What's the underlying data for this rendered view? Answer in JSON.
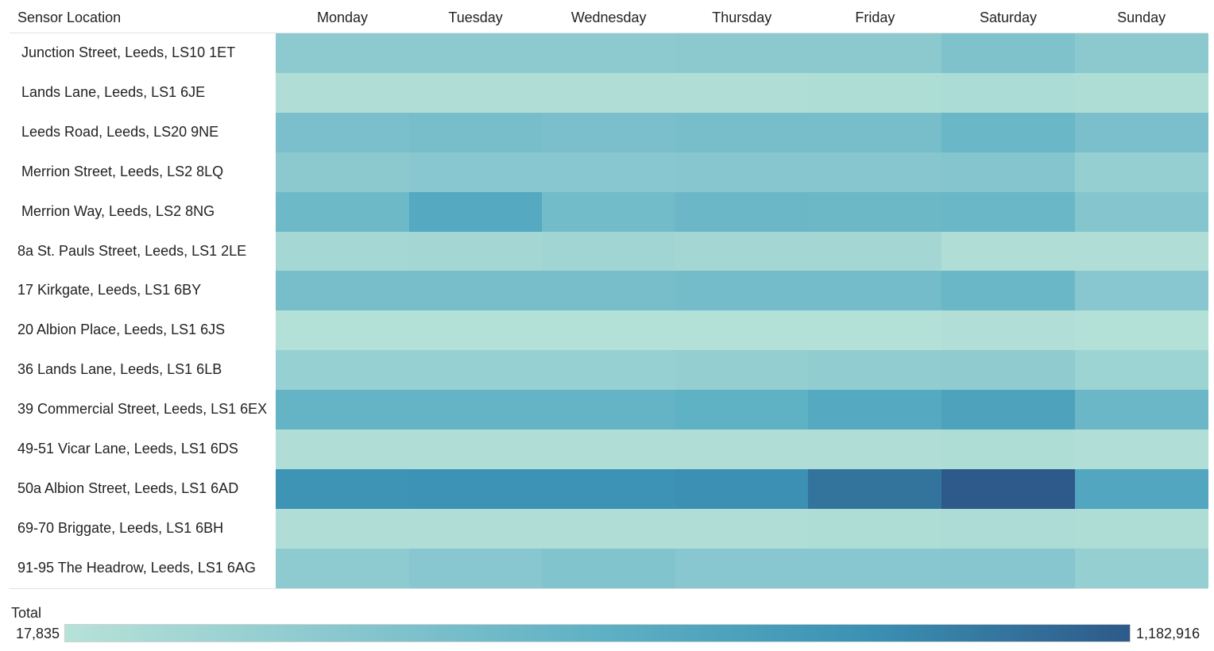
{
  "chart_data": {
    "type": "heatmap",
    "row_header": "Sensor Location",
    "columns": [
      "Monday",
      "Tuesday",
      "Wednesday",
      "Thursday",
      "Friday",
      "Saturday",
      "Sunday"
    ],
    "rows": [
      "Junction Street, Leeds, LS10 1ET",
      "Lands Lane, Leeds, LS1 6JE",
      "Leeds Road, Leeds, LS20 9NE",
      "Merrion Street, Leeds, LS2 8LQ",
      "Merrion Way, Leeds, LS2 8NG",
      "8a St. Pauls Street, Leeds, LS1 2LE",
      "17 Kirkgate, Leeds, LS1 6BY",
      "20 Albion Place, Leeds, LS1 6JS",
      "36 Lands Lane, Leeds, LS1 6LB",
      "39 Commercial Street, Leeds, LS1 6EX",
      "49-51 Vicar Lane, Leeds, LS1 6DS",
      "50a Albion Street, Leeds, LS1 6AD",
      "69-70 Briggate, Leeds, LS1 6BH",
      "91-95 The Headrow, Leeds, LS1 6AG"
    ],
    "values": [
      [
        290000,
        290000,
        290000,
        300000,
        300000,
        380000,
        300000
      ],
      [
        60000,
        60000,
        60000,
        60000,
        70000,
        90000,
        70000
      ],
      [
        420000,
        430000,
        420000,
        430000,
        440000,
        530000,
        420000
      ],
      [
        300000,
        320000,
        320000,
        330000,
        330000,
        340000,
        230000
      ],
      [
        500000,
        680000,
        470000,
        520000,
        510000,
        530000,
        340000
      ],
      [
        130000,
        140000,
        160000,
        140000,
        140000,
        60000,
        60000
      ],
      [
        430000,
        430000,
        430000,
        460000,
        460000,
        530000,
        320000
      ],
      [
        40000,
        40000,
        40000,
        40000,
        40000,
        50000,
        40000
      ],
      [
        220000,
        220000,
        220000,
        240000,
        260000,
        270000,
        190000
      ],
      [
        560000,
        560000,
        560000,
        600000,
        680000,
        740000,
        520000
      ],
      [
        60000,
        60000,
        60000,
        60000,
        60000,
        70000,
        50000
      ],
      [
        870000,
        880000,
        880000,
        900000,
        1050000,
        1182916,
        700000
      ],
      [
        60000,
        60000,
        60000,
        60000,
        70000,
        80000,
        70000
      ],
      [
        280000,
        320000,
        360000,
        320000,
        320000,
        330000,
        230000
      ]
    ],
    "color_scale": {
      "title": "Total",
      "min": 17835,
      "max": 1182916,
      "min_label": "17,835",
      "max_label": "1,182,916",
      "stops": [
        "#b6e2d8",
        "#8ac8cf",
        "#5fb1c4",
        "#3b92b4",
        "#2d5a8a"
      ]
    }
  }
}
